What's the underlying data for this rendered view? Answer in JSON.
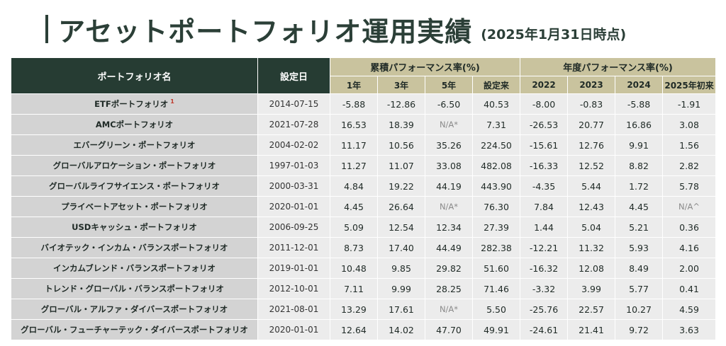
{
  "title": "アセットポートフォリオ運用実績",
  "subtitle": "(2025年1月31日時点)",
  "headers": {
    "portfolio": "ポートフォリオ名",
    "start_date": "設定日",
    "cumulative_group": "累積パフォーマンス率(%)",
    "annual_group": "年度パフォーマンス率(%)",
    "cumulative_cols": [
      "1年",
      "3年",
      "5年",
      "設定来"
    ],
    "annual_cols": [
      "2022",
      "2023",
      "2024",
      "2025年初来"
    ]
  },
  "rows": [
    {
      "name": "ETFポートフォリオ",
      "note": "1",
      "date": "2014-07-15",
      "values": [
        "-5.88",
        "-12.86",
        "-6.50",
        "40.53",
        "-8.00",
        "-0.83",
        "-5.88",
        "-1.91"
      ]
    },
    {
      "name": "AMCポートフォリオ",
      "note": "",
      "date": "2021-07-28",
      "values": [
        "16.53",
        "18.39",
        "N/A*",
        "7.31",
        "-26.53",
        "20.77",
        "16.86",
        "3.08"
      ]
    },
    {
      "name": "エバーグリーン・ポートフォリオ",
      "note": "",
      "date": "2004-02-02",
      "values": [
        "11.17",
        "10.56",
        "35.26",
        "224.50",
        "-15.61",
        "12.76",
        "9.91",
        "1.56"
      ]
    },
    {
      "name": "グローバルアロケーション・ポートフォリオ",
      "note": "",
      "date": "1997-01-03",
      "values": [
        "11.27",
        "11.07",
        "33.08",
        "482.08",
        "-16.33",
        "12.52",
        "8.82",
        "2.82"
      ]
    },
    {
      "name": "グローバルライフサイエンス・ポートフォリオ",
      "note": "",
      "date": "2000-03-31",
      "values": [
        "4.84",
        "19.22",
        "44.19",
        "443.90",
        "-4.35",
        "5.44",
        "1.72",
        "5.78"
      ]
    },
    {
      "name": "プライベートアセット・ポートフォリオ",
      "note": "",
      "date": "2020-01-01",
      "values": [
        "4.45",
        "26.64",
        "N/A*",
        "76.30",
        "7.84",
        "12.43",
        "4.45",
        "N/A^"
      ]
    },
    {
      "name": "USDキャッシュ・ポートフォリオ",
      "note": "",
      "date": "2006-09-25",
      "values": [
        "5.09",
        "12.54",
        "12.34",
        "27.39",
        "1.44",
        "5.04",
        "5.21",
        "0.36"
      ]
    },
    {
      "name": "バイオテック・インカム・バランスポートフォリオ",
      "note": "",
      "date": "2011-12-01",
      "values": [
        "8.73",
        "17.40",
        "44.49",
        "282.38",
        "-12.21",
        "11.32",
        "5.93",
        "4.16"
      ]
    },
    {
      "name": "インカムブレンド・バランスポートフォリオ",
      "note": "",
      "date": "2019-01-01",
      "values": [
        "10.48",
        "9.85",
        "29.82",
        "51.60",
        "-16.32",
        "12.08",
        "8.49",
        "2.00"
      ]
    },
    {
      "name": "トレンド・グローバル・バランスポートフォリオ",
      "note": "",
      "date": "2012-10-01",
      "values": [
        "7.11",
        "9.99",
        "28.25",
        "71.46",
        "-3.32",
        "3.99",
        "5.77",
        "0.41"
      ]
    },
    {
      "name": "グローバル・アルファ・ダイバースポートフォリオ",
      "note": "",
      "date": "2021-08-01",
      "values": [
        "13.29",
        "17.61",
        "N/A*",
        "5.50",
        "-25.76",
        "22.57",
        "10.27",
        "4.59"
      ]
    },
    {
      "name": "グローバル・フューチャーテック・ダイバースポートフォリオ",
      "note": "",
      "date": "2020-01-01",
      "values": [
        "12.64",
        "14.02",
        "47.70",
        "49.91",
        "-24.61",
        "21.41",
        "9.72",
        "3.63"
      ]
    }
  ]
}
